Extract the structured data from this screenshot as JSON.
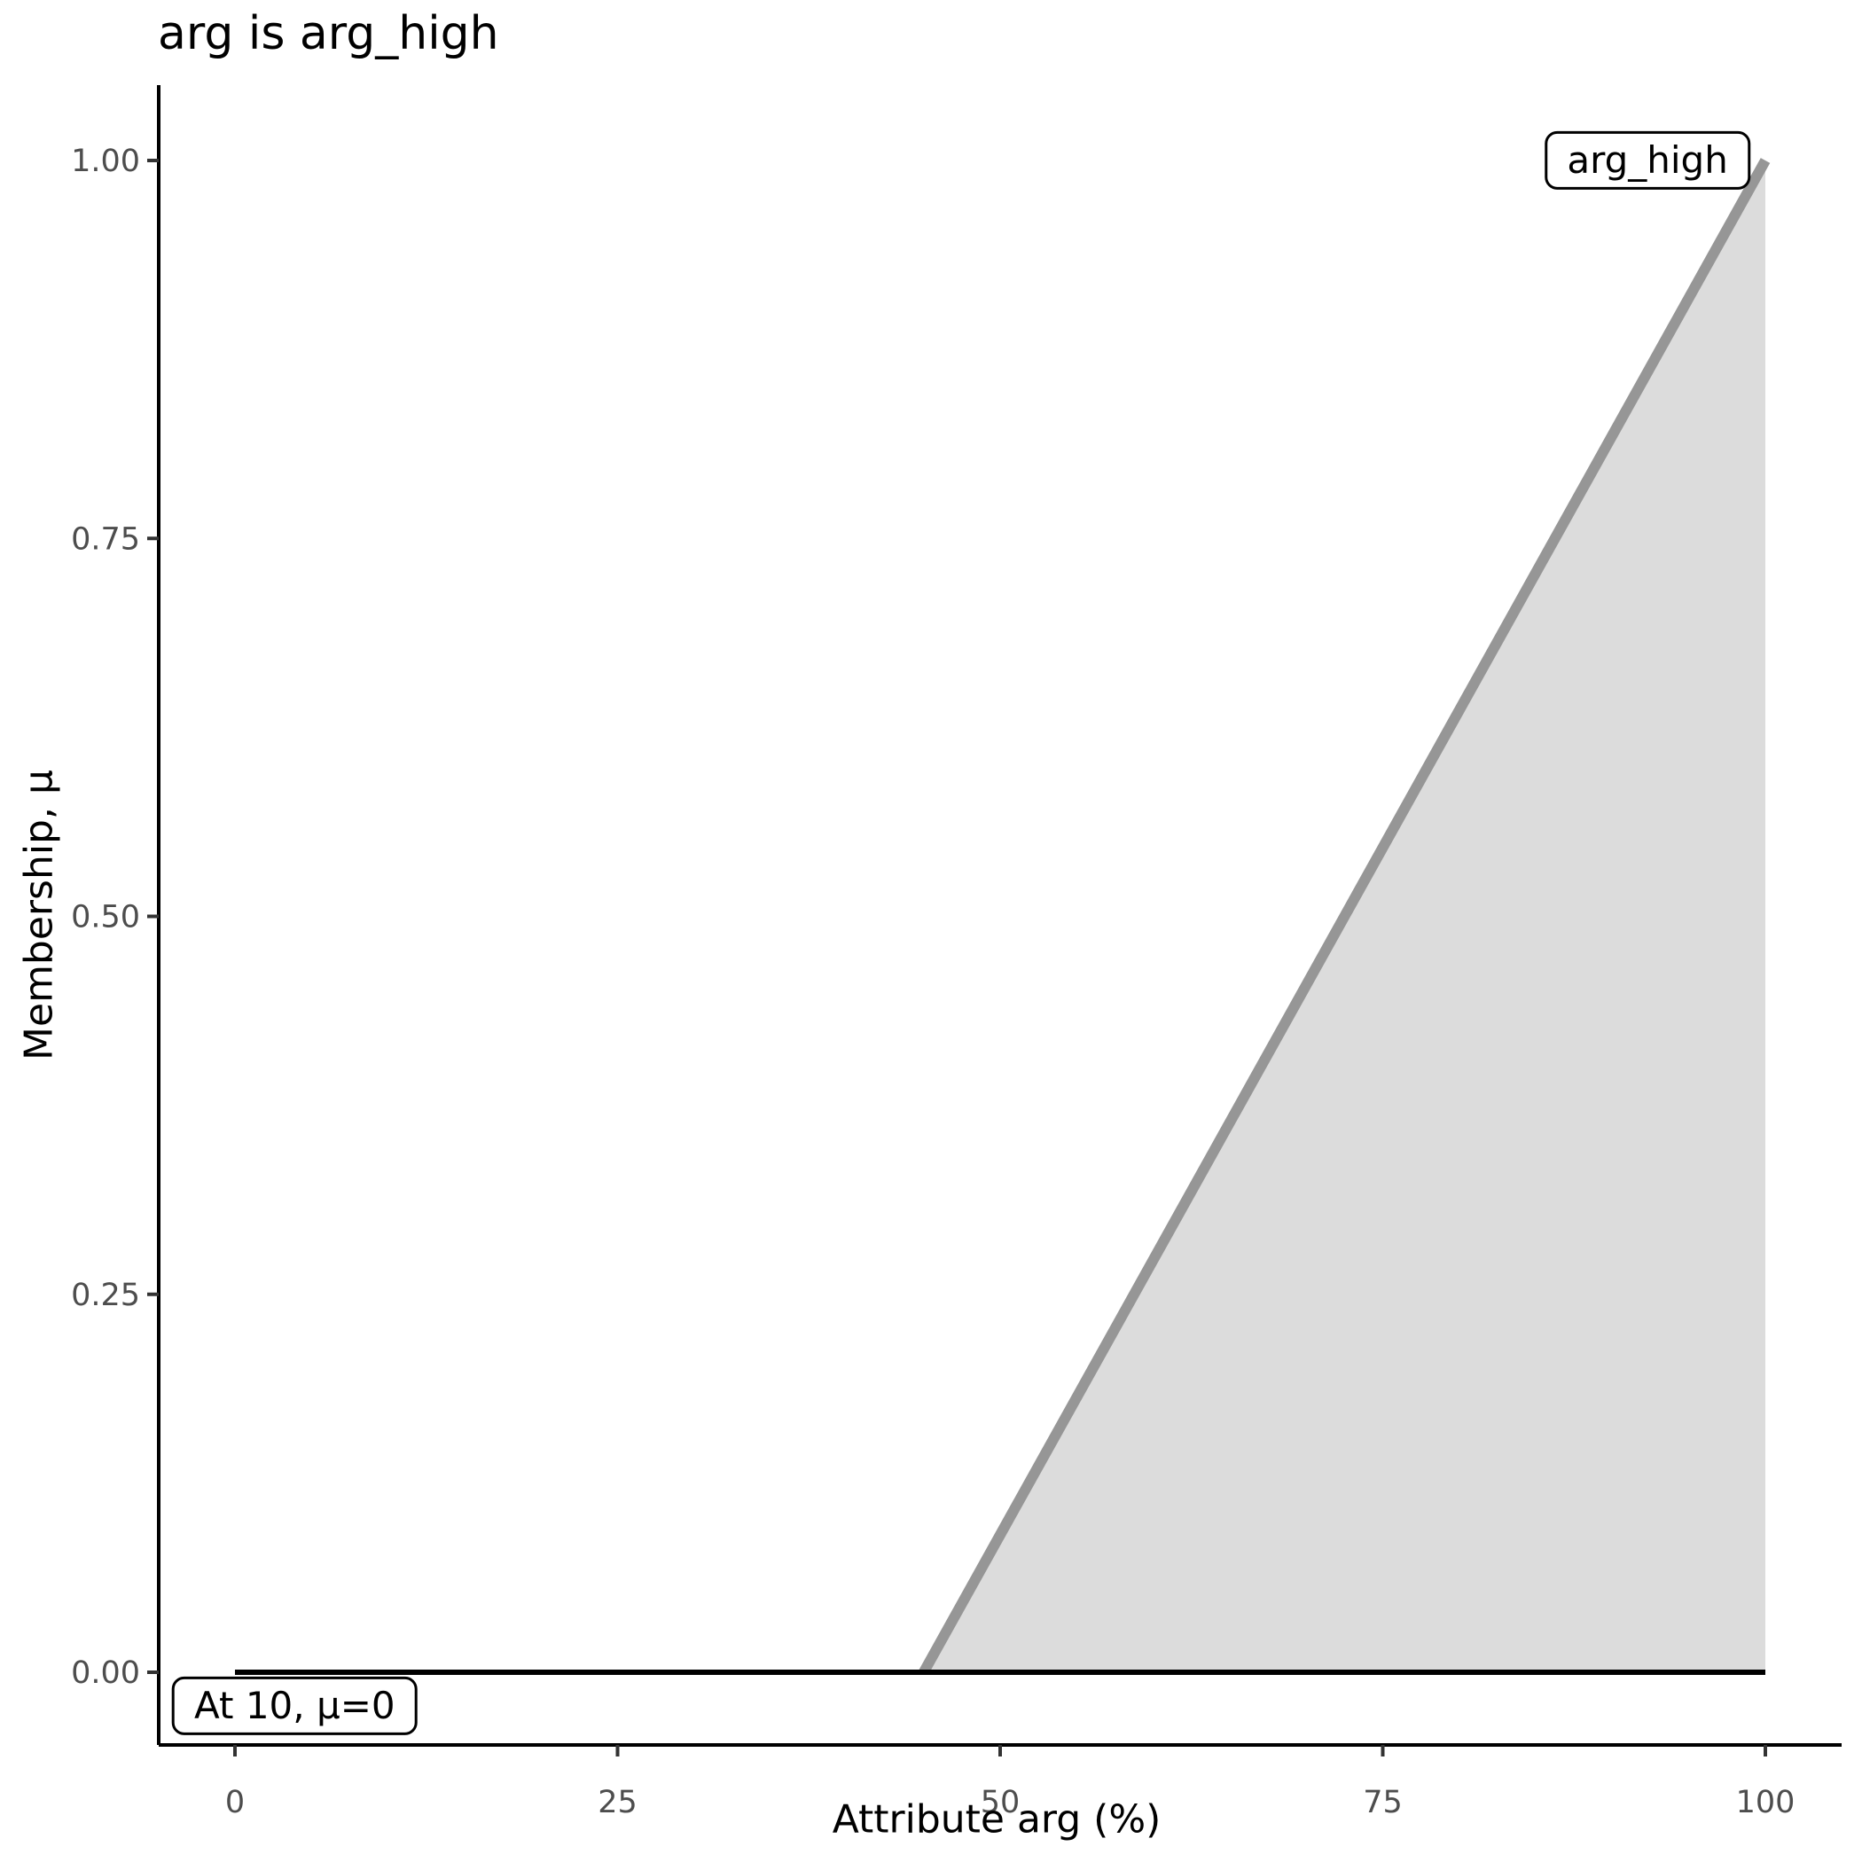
{
  "title": "arg is arg_high",
  "axes": {
    "x": {
      "label": "Attribute arg (%)",
      "ticks": [
        "0",
        "25",
        "50",
        "75",
        "100"
      ],
      "tick_values": [
        0,
        25,
        50,
        75,
        100
      ],
      "range": [
        0,
        100
      ]
    },
    "y": {
      "label": "Membership, μ",
      "ticks": [
        "0.00",
        "0.25",
        "0.50",
        "0.75",
        "1.00"
      ],
      "tick_values": [
        0,
        0.25,
        0.5,
        0.75,
        1
      ],
      "range": [
        0,
        1
      ]
    }
  },
  "chart_data": {
    "type": "area",
    "title": "arg is arg_high",
    "xlabel": "Attribute arg (%)",
    "ylabel": "Membership, μ",
    "xlim": [
      0,
      100
    ],
    "ylim": [
      0,
      1
    ],
    "grid": false,
    "legend_position": "none",
    "series": [
      {
        "name": "arg_high",
        "description": "fuzzy membership function, zero until x=45 then linear to 1 at x=100",
        "x": [
          0,
          45,
          100
        ],
        "y": [
          0,
          0,
          1
        ],
        "visible_line_x": [
          45,
          100
        ],
        "visible_line_y": [
          0,
          1
        ],
        "line_color": "#969696",
        "line_width": 12,
        "fill_color": "#dcdcdc",
        "fill_baseline": 0
      }
    ],
    "level_line": {
      "label": "At 10, μ=0",
      "evaluated_at_x": 10,
      "mu": 0,
      "x_span": [
        0,
        100
      ],
      "color": "#000000",
      "width": 6
    }
  },
  "annotations": [
    {
      "text": "arg_high",
      "anchor_x": 92.3,
      "anchor_y": 1.0
    },
    {
      "text": "At 10, μ=0",
      "anchor_x": 3.9,
      "anchor_y": -0.022
    }
  ],
  "style": {
    "background": "#ffffff",
    "axis_line_color": "#000000",
    "tick_mark_color": "#333333",
    "tick_label_color": "#4d4d4d",
    "title_color": "#000000"
  }
}
